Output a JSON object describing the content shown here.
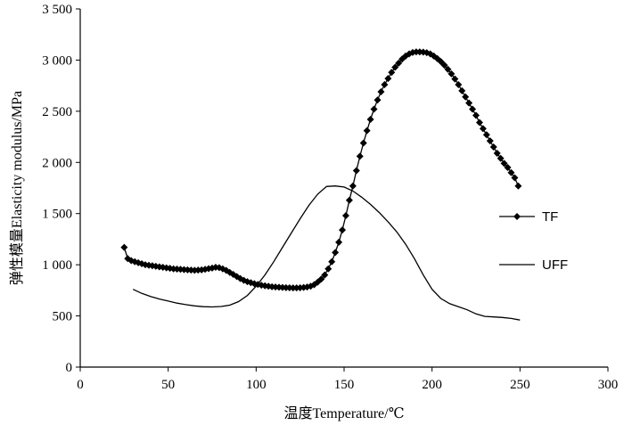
{
  "chart_data": {
    "type": "line",
    "xlabel": "温度Temperature/℃",
    "ylabel": "弹性模量Elasticity modulus/MPa",
    "xlim": [
      0,
      300
    ],
    "ylim": [
      0,
      3500
    ],
    "xticks": [
      0,
      50,
      100,
      150,
      200,
      250,
      300
    ],
    "xtick_labels": [
      "0",
      "50",
      "100",
      "150",
      "200",
      "250",
      "300"
    ],
    "yticks": [
      0,
      500,
      1000,
      1500,
      2000,
      2500,
      3000,
      3500
    ],
    "ytick_labels": [
      "0",
      "500",
      "1 000",
      "1 500",
      "2 000",
      "2 500",
      "3 000",
      "3 500"
    ],
    "grid": false,
    "legend_position": "right",
    "series": [
      {
        "name": "TF",
        "marker": "diamond",
        "color": "#000000",
        "points": [
          [
            25,
            1170
          ],
          [
            27,
            1060
          ],
          [
            29,
            1040
          ],
          [
            31,
            1030
          ],
          [
            33,
            1020
          ],
          [
            35,
            1010
          ],
          [
            37,
            1000
          ],
          [
            39,
            995
          ],
          [
            41,
            990
          ],
          [
            43,
            985
          ],
          [
            45,
            980
          ],
          [
            47,
            975
          ],
          [
            49,
            970
          ],
          [
            51,
            965
          ],
          [
            53,
            960
          ],
          [
            55,
            958
          ],
          [
            57,
            955
          ],
          [
            59,
            952
          ],
          [
            61,
            950
          ],
          [
            63,
            948
          ],
          [
            65,
            946
          ],
          [
            67,
            948
          ],
          [
            69,
            950
          ],
          [
            71,
            955
          ],
          [
            73,
            962
          ],
          [
            75,
            968
          ],
          [
            77,
            975
          ],
          [
            79,
            972
          ],
          [
            81,
            960
          ],
          [
            83,
            945
          ],
          [
            85,
            925
          ],
          [
            87,
            905
          ],
          [
            89,
            885
          ],
          [
            91,
            865
          ],
          [
            93,
            848
          ],
          [
            95,
            835
          ],
          [
            97,
            825
          ],
          [
            99,
            815
          ],
          [
            101,
            808
          ],
          [
            103,
            800
          ],
          [
            105,
            795
          ],
          [
            107,
            790
          ],
          [
            109,
            785
          ],
          [
            111,
            782
          ],
          [
            113,
            780
          ],
          [
            115,
            778
          ],
          [
            117,
            776
          ],
          [
            119,
            775
          ],
          [
            121,
            774
          ],
          [
            123,
            774
          ],
          [
            125,
            775
          ],
          [
            127,
            778
          ],
          [
            129,
            782
          ],
          [
            131,
            790
          ],
          [
            133,
            805
          ],
          [
            135,
            830
          ],
          [
            137,
            860
          ],
          [
            139,
            900
          ],
          [
            141,
            960
          ],
          [
            143,
            1030
          ],
          [
            145,
            1120
          ],
          [
            147,
            1220
          ],
          [
            149,
            1340
          ],
          [
            151,
            1480
          ],
          [
            153,
            1630
          ],
          [
            155,
            1770
          ],
          [
            157,
            1920
          ],
          [
            159,
            2060
          ],
          [
            161,
            2190
          ],
          [
            163,
            2310
          ],
          [
            165,
            2420
          ],
          [
            167,
            2520
          ],
          [
            169,
            2610
          ],
          [
            171,
            2690
          ],
          [
            173,
            2760
          ],
          [
            175,
            2820
          ],
          [
            177,
            2880
          ],
          [
            179,
            2930
          ],
          [
            181,
            2970
          ],
          [
            183,
            3010
          ],
          [
            185,
            3040
          ],
          [
            187,
            3060
          ],
          [
            189,
            3075
          ],
          [
            191,
            3080
          ],
          [
            193,
            3080
          ],
          [
            195,
            3078
          ],
          [
            197,
            3072
          ],
          [
            199,
            3060
          ],
          [
            201,
            3040
          ],
          [
            203,
            3015
          ],
          [
            205,
            2985
          ],
          [
            207,
            2950
          ],
          [
            209,
            2910
          ],
          [
            211,
            2865
          ],
          [
            213,
            2815
          ],
          [
            215,
            2760
          ],
          [
            217,
            2700
          ],
          [
            219,
            2640
          ],
          [
            221,
            2580
          ],
          [
            223,
            2520
          ],
          [
            225,
            2460
          ],
          [
            227,
            2390
          ],
          [
            229,
            2330
          ],
          [
            231,
            2270
          ],
          [
            233,
            2210
          ],
          [
            235,
            2150
          ],
          [
            237,
            2090
          ],
          [
            239,
            2040
          ],
          [
            241,
            1990
          ],
          [
            243,
            1950
          ],
          [
            245,
            1900
          ],
          [
            247,
            1850
          ],
          [
            249,
            1770
          ]
        ]
      },
      {
        "name": "UFF",
        "marker": "none",
        "color": "#000000",
        "points": [
          [
            30,
            760
          ],
          [
            35,
            720
          ],
          [
            40,
            690
          ],
          [
            45,
            665
          ],
          [
            50,
            645
          ],
          [
            55,
            625
          ],
          [
            60,
            610
          ],
          [
            65,
            598
          ],
          [
            70,
            590
          ],
          [
            75,
            588
          ],
          [
            80,
            592
          ],
          [
            85,
            605
          ],
          [
            90,
            640
          ],
          [
            95,
            700
          ],
          [
            100,
            790
          ],
          [
            105,
            900
          ],
          [
            110,
            1030
          ],
          [
            115,
            1170
          ],
          [
            120,
            1310
          ],
          [
            125,
            1450
          ],
          [
            130,
            1580
          ],
          [
            135,
            1690
          ],
          [
            140,
            1765
          ],
          [
            145,
            1770
          ],
          [
            150,
            1760
          ],
          [
            155,
            1720
          ],
          [
            160,
            1660
          ],
          [
            165,
            1590
          ],
          [
            170,
            1510
          ],
          [
            175,
            1420
          ],
          [
            180,
            1320
          ],
          [
            185,
            1200
          ],
          [
            190,
            1060
          ],
          [
            195,
            900
          ],
          [
            200,
            760
          ],
          [
            205,
            670
          ],
          [
            210,
            620
          ],
          [
            215,
            590
          ],
          [
            220,
            560
          ],
          [
            225,
            520
          ],
          [
            230,
            495
          ],
          [
            235,
            490
          ],
          [
            240,
            485
          ],
          [
            245,
            475
          ],
          [
            250,
            460
          ]
        ]
      }
    ]
  }
}
